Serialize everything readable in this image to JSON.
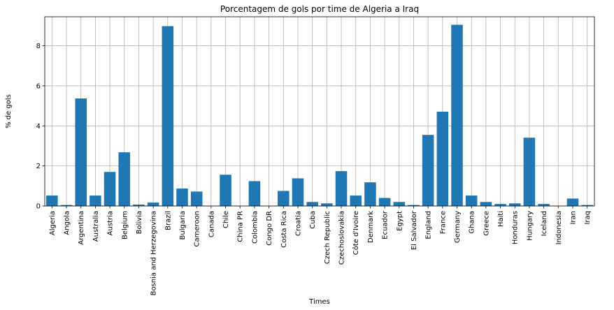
{
  "chart_data": {
    "type": "bar",
    "title": "Porcentagem de gols por time de Algeria a Iraq",
    "xlabel": "Times",
    "ylabel": "% de gols",
    "ylim": [
      0,
      9.45
    ],
    "yticks": [
      0,
      2,
      4,
      6,
      8
    ],
    "grid": true,
    "bar_color": "#1f77b4",
    "categories": [
      "Algeria",
      "Angola",
      "Argentina",
      "Australia",
      "Austria",
      "Belgium",
      "Bolivia",
      "Bosnia and Herzegovina",
      "Brazil",
      "Bulgaria",
      "Cameroon",
      "Canada",
      "Chile",
      "China PR",
      "Colombia",
      "Congo DR",
      "Costa Rica",
      "Croatia",
      "Cuba",
      "Czech Republic",
      "Czechoslovakia",
      "Côte d'Ivoire",
      "Denmark",
      "Ecuador",
      "Egypt",
      "El Salvador",
      "England",
      "France",
      "Germany",
      "Ghana",
      "Greece",
      "Haiti",
      "Honduras",
      "Hungary",
      "Iceland",
      "Indonesia",
      "Iran",
      "Iraq"
    ],
    "values": [
      0.52,
      0.05,
      5.37,
      0.52,
      1.7,
      2.68,
      0.07,
      0.17,
      8.98,
      0.87,
      0.72,
      0.0,
      1.56,
      0.0,
      1.24,
      0.0,
      0.75,
      1.38,
      0.2,
      0.13,
      1.74,
      0.52,
      1.18,
      0.4,
      0.2,
      0.05,
      3.55,
      4.71,
      9.05,
      0.52,
      0.2,
      0.1,
      0.13,
      3.41,
      0.1,
      0.0,
      0.37,
      0.05
    ]
  }
}
